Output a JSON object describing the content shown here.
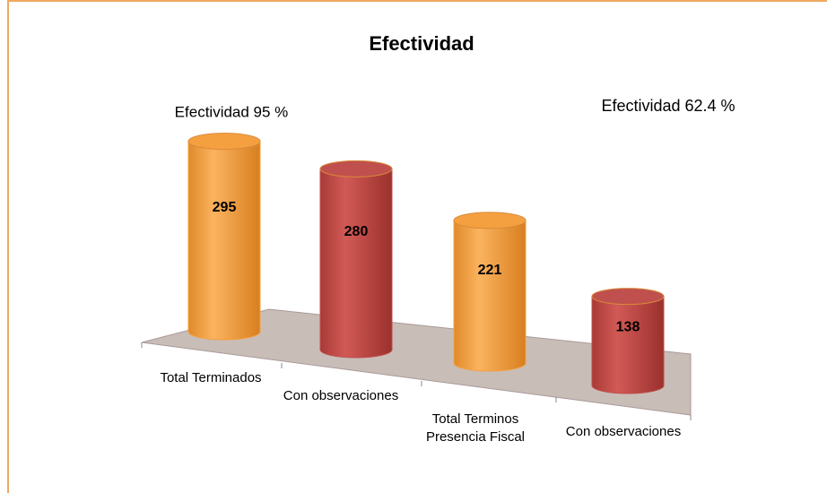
{
  "chart_data": {
    "type": "bar3d",
    "title": "Efectividad",
    "categories": [
      "Total Terminados",
      "Con observaciones",
      "Total Terminos Presencia Fiscal",
      "Con observaciones"
    ],
    "values": [
      295,
      280,
      221,
      138
    ],
    "colors": [
      "#f5a040",
      "#c0504d",
      "#f5a040",
      "#c0504d"
    ],
    "annotations": [
      "Efectividad 95 %",
      "Efectividad 62.4 %"
    ]
  }
}
